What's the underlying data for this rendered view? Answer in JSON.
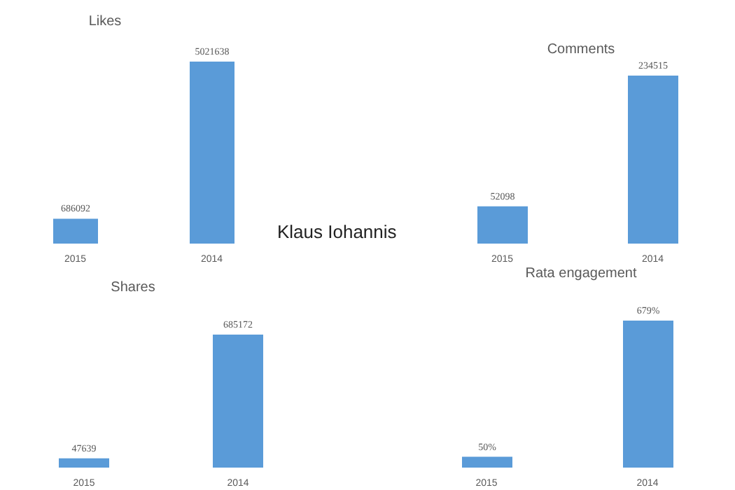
{
  "chart_data": [
    {
      "type": "bar",
      "title": "Likes",
      "categories": [
        "2015",
        "2014"
      ],
      "values": [
        686092,
        5021638
      ],
      "color": "#5a9bd8",
      "data_labels": true,
      "annotations": [
        "Klaus Iohannis"
      ]
    },
    {
      "type": "bar",
      "title": "Comments",
      "categories": [
        "2015",
        "2014"
      ],
      "values": [
        52098,
        234515
      ],
      "color": "#5a9bd8",
      "data_labels": true
    },
    {
      "type": "bar",
      "title": "Shares",
      "categories": [
        "2015",
        "2014"
      ],
      "values": [
        47639,
        685172
      ],
      "color": "#5a9bd8",
      "data_labels": true
    },
    {
      "type": "bar",
      "title": "Rata engagement",
      "categories": [
        "2015",
        "2014"
      ],
      "values": [
        50,
        679
      ],
      "value_labels": [
        "50%",
        "679%"
      ],
      "color": "#5a9bd8"
    }
  ]
}
